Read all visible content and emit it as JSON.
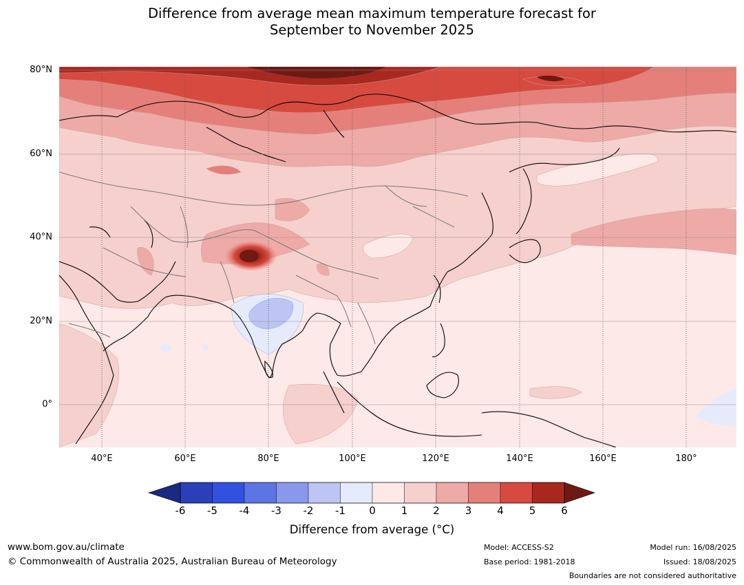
{
  "title": {
    "line1": "Difference from average mean maximum temperature forecast for",
    "line2": "September to November 2025"
  },
  "map": {
    "lat_labels": [
      "80°N",
      "60°N",
      "40°N",
      "20°N",
      "0°"
    ],
    "lon_labels": [
      "40°E",
      "60°E",
      "80°E",
      "100°E",
      "120°E",
      "140°E",
      "160°E",
      "180°"
    ],
    "ocean_color": "#fde9e7",
    "overlay_regions": [
      "central-asia-warm-hotspot",
      "arctic-siberia-warm-band",
      "india-cool-anomaly",
      "pacific-warm-band"
    ]
  },
  "colorbar": {
    "ticks": [
      "-6",
      "-5",
      "-4",
      "-3",
      "-2",
      "-1",
      "0",
      "1",
      "2",
      "3",
      "4",
      "5",
      "6"
    ],
    "colors": [
      "#1a2a80",
      "#2a3fb8",
      "#3251e0",
      "#5c74e4",
      "#8898ea",
      "#bcc5f3",
      "#e6ebfb",
      "#fdeae8",
      "#f6d0cd",
      "#eeaaa7",
      "#e48079",
      "#d74a40",
      "#a8281f",
      "#6e1a14"
    ],
    "label": "Difference from average (°C)"
  },
  "footer": {
    "website": "www.bom.gov.au/climate",
    "copyright": "© Commonwealth of Australia 2025, Australian Bureau of Meteorology",
    "model": "Model: ACCESS-S2",
    "base_period": "Base period: 1981-2018",
    "model_run": "Model run: 16/08/2025",
    "issued": "Issued: 18/08/2025",
    "disclaimer": "Boundaries are not considered authoritative"
  }
}
